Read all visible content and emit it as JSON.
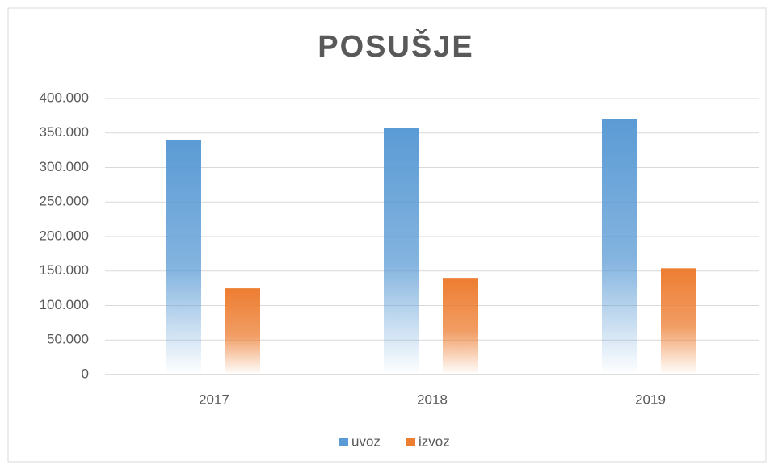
{
  "chart_data": {
    "type": "bar",
    "title": "POSUŠJE",
    "categories": [
      "2017",
      "2018",
      "2019"
    ],
    "series": [
      {
        "name": "uvoz",
        "color": "#5b9bd5",
        "values": [
          340000,
          357000,
          370000
        ]
      },
      {
        "name": "izvoz",
        "color": "#ed7d31",
        "values": [
          125000,
          139000,
          154000
        ]
      }
    ],
    "ylim": [
      0,
      400000
    ],
    "yticks": [
      0,
      {
        "value": 50000,
        "label": "50.000"
      },
      {
        "value": 100000,
        "label": "100.000"
      },
      {
        "value": 150000,
        "label": "150.000"
      },
      {
        "value": 200000,
        "label": "200.000"
      },
      {
        "value": 250000,
        "label": "250.000"
      },
      {
        "value": 300000,
        "label": "300.000"
      },
      {
        "value": 350000,
        "label": "350.000"
      },
      {
        "value": 400000,
        "label": "400.000"
      }
    ],
    "grid": true,
    "legend": "bottom"
  }
}
